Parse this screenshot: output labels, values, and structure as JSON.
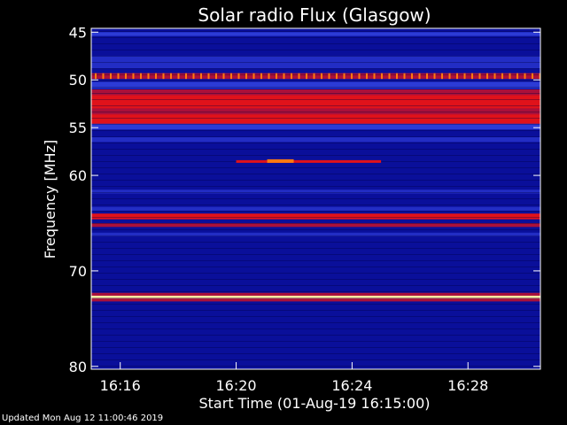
{
  "chart_data": {
    "type": "heatmap",
    "title": "Solar radio Flux (Glasgow)",
    "ylabel": "Frequency [MHz]",
    "xlabel": "Start Time (01-Aug-19 16:15:00)",
    "y_ticks": [
      "45",
      "50",
      "55",
      "60",
      "70",
      "80"
    ],
    "x_ticks": [
      "16:16",
      "16:20",
      "16:24",
      "16:28"
    ],
    "bands": [
      {
        "from": 45.0,
        "to": 45.4,
        "level": 2
      },
      {
        "from": 47.5,
        "to": 48.8,
        "level": 1
      },
      {
        "from": 49.3,
        "to": 49.9,
        "level": 3
      },
      {
        "from": 50.2,
        "to": 50.9,
        "level": 2
      },
      {
        "from": 51.0,
        "to": 51.6,
        "level": 3
      },
      {
        "from": 51.6,
        "to": 53.0,
        "level": 4
      },
      {
        "from": 53.0,
        "to": 53.6,
        "level": 3
      },
      {
        "from": 53.6,
        "to": 54.6,
        "level": 4
      },
      {
        "from": 54.6,
        "to": 55.2,
        "level": 2
      },
      {
        "from": 56.0,
        "to": 56.5,
        "level": 1
      },
      {
        "from": 61.5,
        "to": 61.9,
        "level": 1
      },
      {
        "from": 63.3,
        "to": 63.7,
        "level": 1
      },
      {
        "from": 64.0,
        "to": 64.6,
        "level": 4
      },
      {
        "from": 65.0,
        "to": 65.4,
        "level": 3
      },
      {
        "from": 66.0,
        "to": 66.4,
        "level": 1
      },
      {
        "from": 72.3,
        "to": 72.6,
        "level": 3
      },
      {
        "from": 72.6,
        "to": 72.9,
        "level": 5
      },
      {
        "from": 72.9,
        "to": 73.2,
        "level": 3
      }
    ],
    "burst": {
      "freq": 58.5,
      "start": "16:20:00",
      "end": "16:25:00"
    },
    "colors": {
      "background": "#000000",
      "low": "#0a0f9a",
      "mid": "#2c3bd6",
      "red": "#e0121a",
      "orange": "#ff7a10",
      "yellow": "#ffe9a0",
      "text": "#ffffff"
    }
  },
  "footer": "Updated Mon Aug 12 11:00:46 2019"
}
